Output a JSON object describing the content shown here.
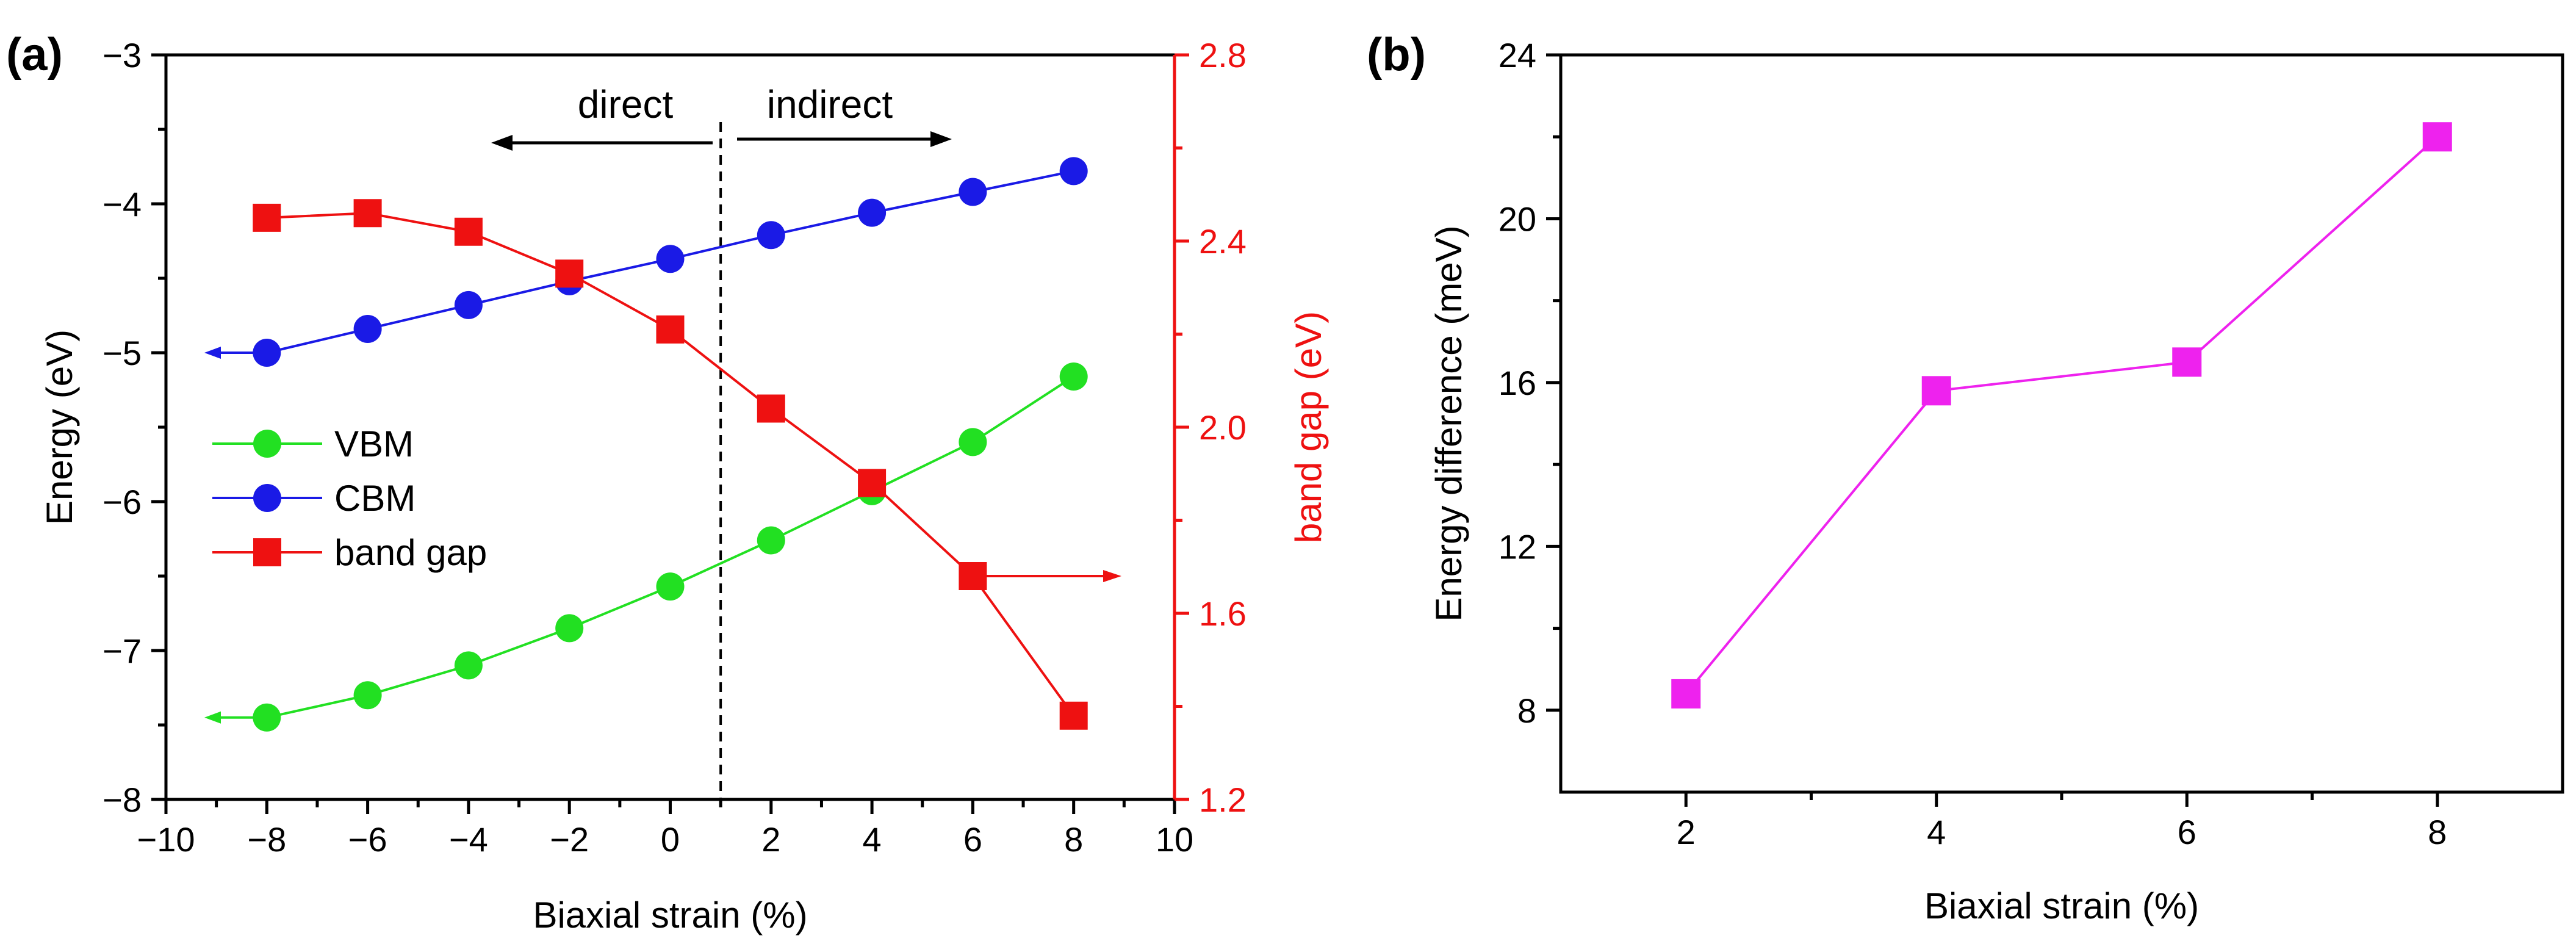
{
  "chart_data": [
    {
      "panel_label": "(a)",
      "type": "line",
      "xlabel": "Biaxial strain (%)",
      "ylabel": "Energy (eV)",
      "y2label": "band gap (eV)",
      "xlim": [
        -10,
        10
      ],
      "ylim": [
        -8,
        -3
      ],
      "y2lim": [
        1.2,
        2.8
      ],
      "xticks": [
        -10,
        -8,
        -6,
        -4,
        -2,
        0,
        2,
        4,
        6,
        8,
        10
      ],
      "xtick_labels": [
        "−10",
        "−8",
        "−6",
        "−4",
        "−2",
        "0",
        "2",
        "4",
        "6",
        "8",
        "10"
      ],
      "yticks": [
        -8,
        -7,
        -6,
        -5,
        -4,
        -3
      ],
      "ytick_labels": [
        "−8",
        "−7",
        "−6",
        "−5",
        "−4",
        "−3"
      ],
      "y2ticks": [
        1.2,
        1.6,
        2.0,
        2.4,
        2.8
      ],
      "y2tick_labels": [
        "1.2",
        "1.6",
        "2.0",
        "2.4",
        "2.8"
      ],
      "x": [
        -8,
        -6,
        -4,
        -2,
        0,
        2,
        4,
        6,
        8
      ],
      "series": [
        {
          "name": "VBM",
          "axis": "left",
          "marker": "circle",
          "color": "#22e022",
          "values": [
            -7.45,
            -7.3,
            -7.1,
            -6.85,
            -6.57,
            -6.26,
            -5.93,
            -5.6,
            -5.16
          ]
        },
        {
          "name": "CBM",
          "axis": "left",
          "marker": "circle",
          "color": "#1a1ae6",
          "values": [
            -5.0,
            -4.84,
            -4.68,
            -4.52,
            -4.37,
            -4.21,
            -4.06,
            -3.92,
            -3.78
          ]
        },
        {
          "name": "band gap",
          "axis": "right",
          "marker": "square",
          "color": "#ee1111",
          "values": [
            2.45,
            2.46,
            2.42,
            2.33,
            2.21,
            2.04,
            1.88,
            1.68,
            1.38
          ]
        }
      ],
      "legend": [
        "VBM",
        "CBM",
        "band gap"
      ],
      "legend_position": "center-left",
      "divider_x": 1,
      "annotations": {
        "direct": "direct",
        "indirect": "indirect"
      }
    },
    {
      "panel_label": "(b)",
      "type": "line",
      "xlabel": "Biaxial strain (%)",
      "ylabel": "Energy difference (meV)",
      "xlim": [
        1,
        9
      ],
      "ylim": [
        6,
        24
      ],
      "xticks": [
        2,
        4,
        6,
        8
      ],
      "xtick_labels": [
        "2",
        "4",
        "6",
        "8"
      ],
      "yticks": [
        8,
        12,
        16,
        20,
        24
      ],
      "ytick_labels": [
        "8",
        "12",
        "16",
        "20",
        "24"
      ],
      "x": [
        2,
        4,
        6,
        8
      ],
      "series": [
        {
          "name": "Energy difference",
          "marker": "square",
          "color": "#ee22ee",
          "values": [
            8.4,
            15.8,
            16.5,
            22.0
          ]
        }
      ]
    }
  ]
}
